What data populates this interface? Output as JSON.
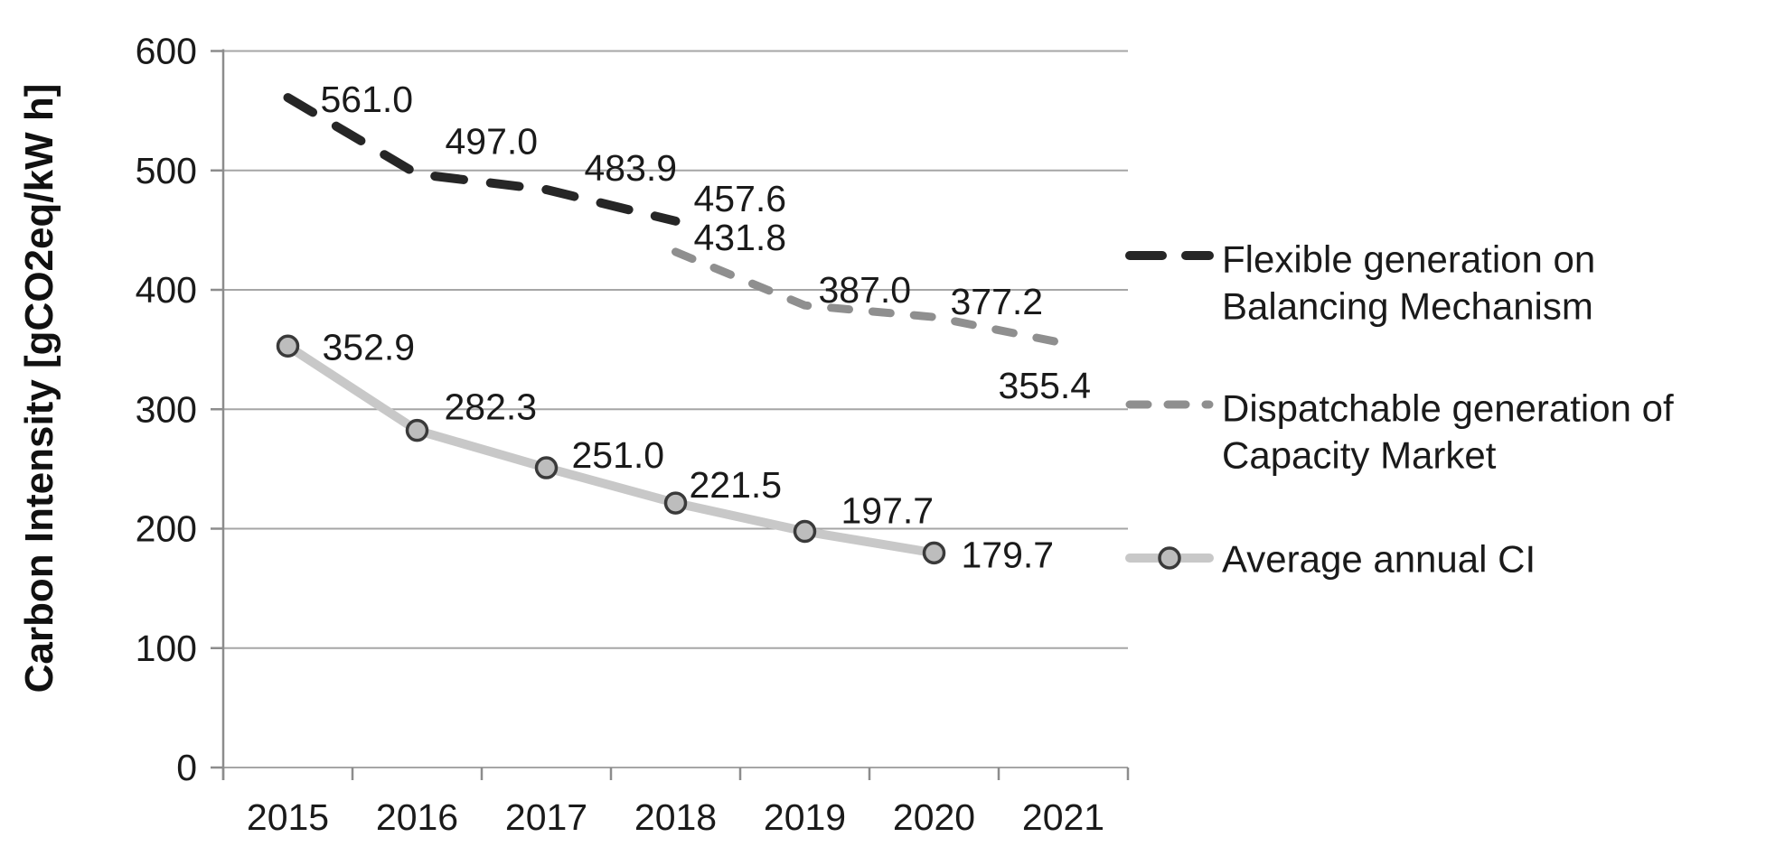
{
  "page": {
    "background": "#ffffff"
  },
  "chart_data": {
    "type": "line",
    "title": "",
    "xlabel": "",
    "ylabel": "Carbon Intensity [gCO2eq/kW h]",
    "ylim": [
      0,
      600
    ],
    "yticks": [
      0,
      100,
      200,
      300,
      400,
      500,
      600
    ],
    "categories": [
      "2015",
      "2016",
      "2017",
      "2018",
      "2019",
      "2020",
      "2021"
    ],
    "grid": "horizontal-only",
    "legend_position": "right-center",
    "series": [
      {
        "id": "flexible",
        "name": "Flexible generation on Balancing Mechanism",
        "legend_lines": [
          "Flexible generation on",
          "Balancing Mechanism"
        ],
        "line_style": "dashed",
        "color": "#262626",
        "categories": [
          "2015",
          "2016",
          "2017",
          "2018"
        ],
        "values": [
          561.0,
          497.0,
          483.9,
          457.6
        ],
        "data_labels": [
          "561.0",
          "497.0",
          "483.9",
          "457.6"
        ]
      },
      {
        "id": "dispatchable",
        "name": "Dispatchable generation of Capacity Market",
        "legend_lines": [
          "Dispatchable generation of",
          "Capacity Market"
        ],
        "line_style": "dashed",
        "color": "#8f8f8f",
        "categories": [
          "2018",
          "2019",
          "2020",
          "2021"
        ],
        "values": [
          431.8,
          387.0,
          377.2,
          355.4
        ],
        "data_labels": [
          "431.8",
          "387.0",
          "377.2",
          "355.4"
        ]
      },
      {
        "id": "average",
        "name": "Average annual CI",
        "legend_lines": [
          "Average annual CI"
        ],
        "line_style": "solid",
        "marker": "circle",
        "color": "#c8c8c8",
        "marker_fill": "#bdbdbd",
        "marker_stroke": "#3a3a3a",
        "categories": [
          "2015",
          "2016",
          "2017",
          "2018",
          "2019",
          "2020"
        ],
        "values": [
          352.9,
          282.3,
          251.0,
          221.5,
          197.7,
          179.7
        ],
        "data_labels": [
          "352.9",
          "282.3",
          "251.0",
          "221.5",
          "197.7",
          "179.7"
        ]
      }
    ],
    "colors": {
      "gridline": "#a6a6a6",
      "axis": "#8c8c8c",
      "text": "#1a1a1a",
      "background": "#ffffff"
    }
  }
}
